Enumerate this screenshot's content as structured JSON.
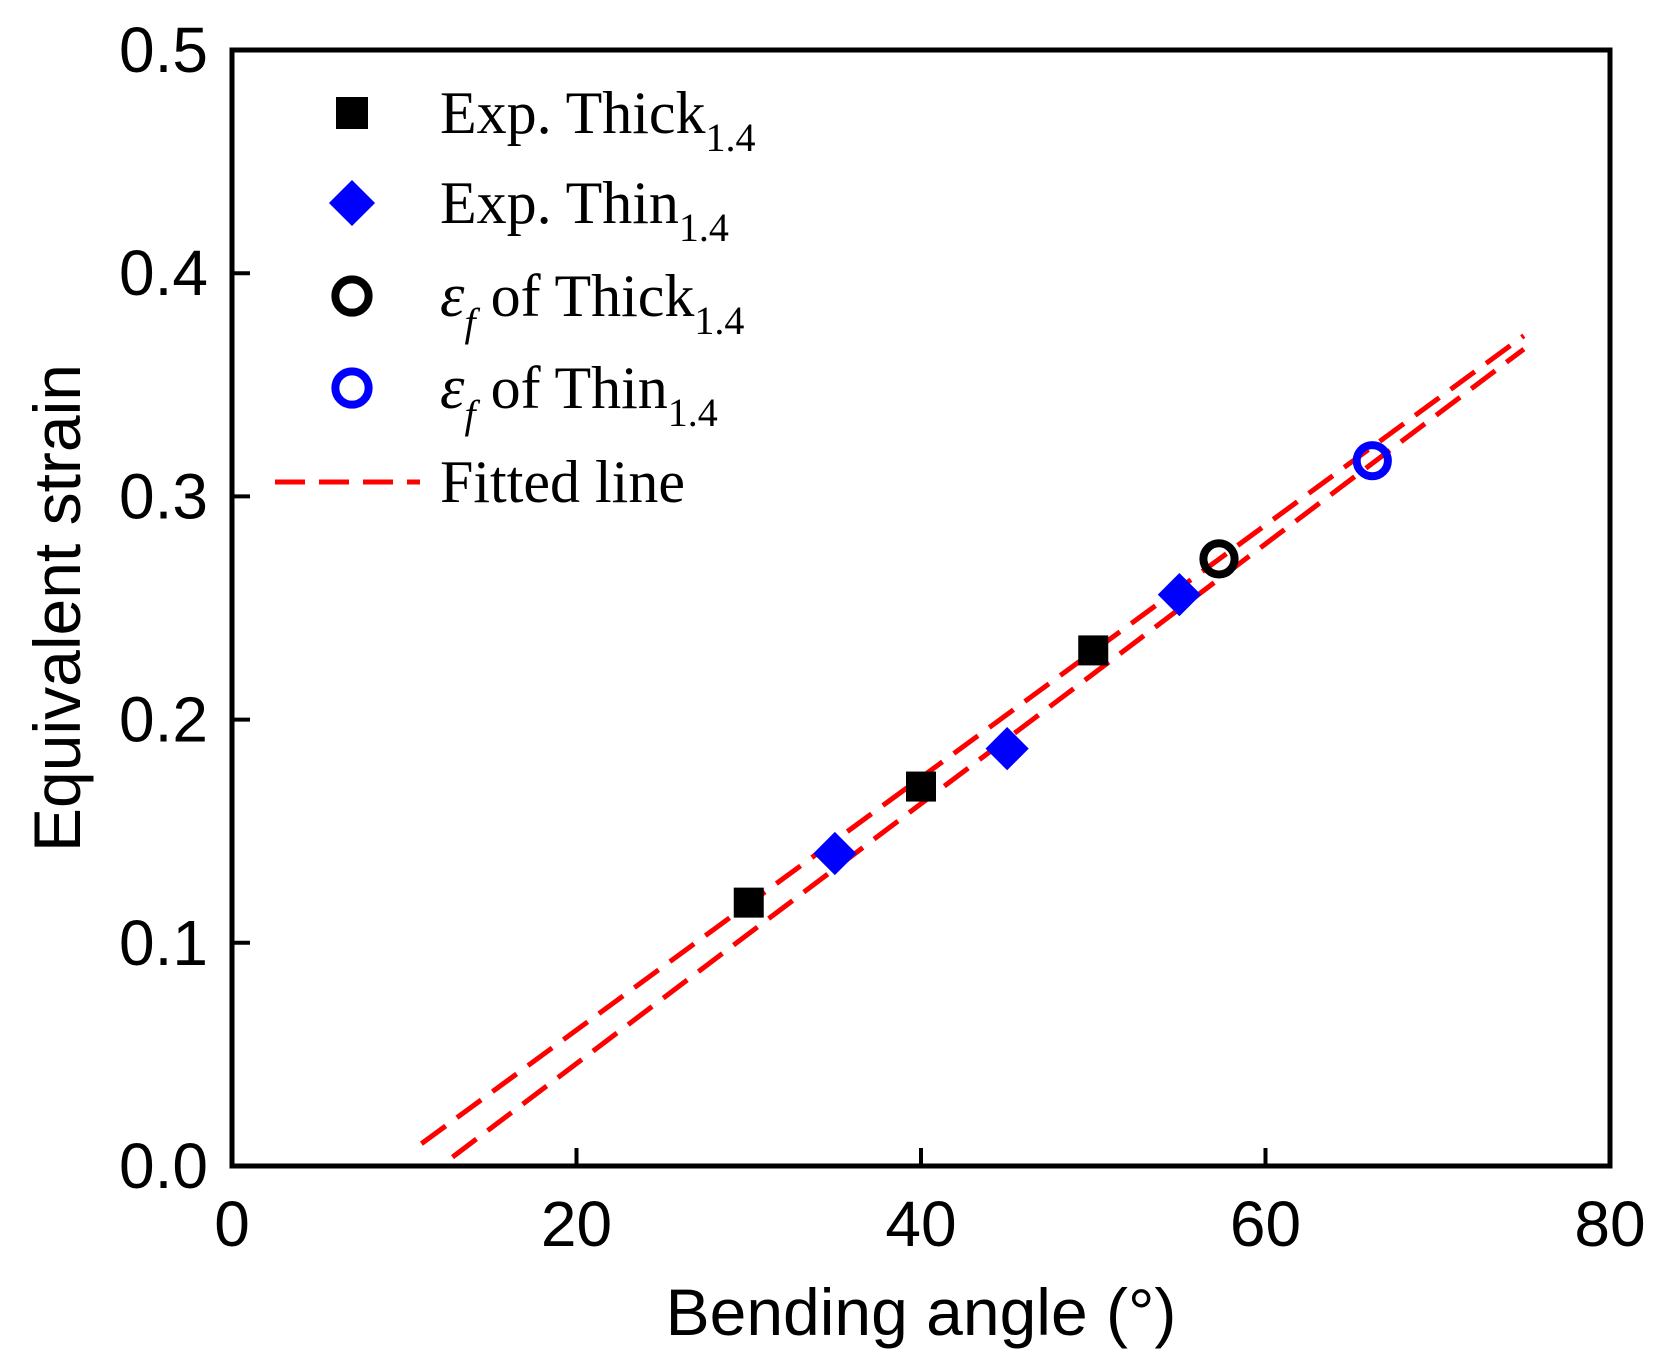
{
  "chart_data": {
    "type": "scatter",
    "title": "",
    "xlabel": "Bending angle (°)",
    "ylabel": "Equivalent strain",
    "xlim": [
      0,
      80
    ],
    "ylim": [
      0.0,
      0.5
    ],
    "xticks": [
      0,
      20,
      40,
      60,
      80
    ],
    "xtick_labels": [
      "0",
      "20",
      "40",
      "60",
      "80"
    ],
    "yticks": [
      0.0,
      0.1,
      0.2,
      0.3,
      0.4,
      0.5
    ],
    "ytick_labels": [
      "0.0",
      "0.1",
      "0.2",
      "0.3",
      "0.4",
      "0.5"
    ],
    "grid": false,
    "legend_position": "top-left",
    "series": [
      {
        "name": "Exp. Thick1.4",
        "label_main": "Exp. Thick",
        "label_sub": "1.4",
        "marker": "square",
        "color": "#000000",
        "x": [
          30,
          40,
          50
        ],
        "y": [
          0.118,
          0.17,
          0.231
        ]
      },
      {
        "name": "Exp. Thin1.4",
        "label_main": "Exp. Thin",
        "label_sub": "1.4",
        "marker": "diamond",
        "color": "#0000ff",
        "x": [
          35,
          45,
          55
        ],
        "y": [
          0.14,
          0.187,
          0.256
        ]
      },
      {
        "name": "εf of Thick1.4",
        "label_eps": "ε",
        "label_eps_sub": "f",
        "label_main": " of Thick",
        "label_sub": "1.4",
        "marker": "open-circle",
        "color": "#000000",
        "x": [
          57.3
        ],
        "y": [
          0.272
        ]
      },
      {
        "name": "εf of Thin1.4",
        "label_eps": "ε",
        "label_eps_sub": "f",
        "label_main": " of Thin",
        "label_sub": "1.4",
        "marker": "open-circle",
        "color": "#0000ff",
        "x": [
          66.2
        ],
        "y": [
          0.316
        ]
      },
      {
        "name": "Fitted line",
        "label_main": "Fitted line",
        "marker": "dashed-line",
        "color": "#ff0000",
        "lines": [
          {
            "x": [
              11.0,
              75.0
            ],
            "y": [
              0.01,
              0.372
            ]
          },
          {
            "x": [
              12.8,
              75.0
            ],
            "y": [
              0.004,
              0.366
            ]
          }
        ]
      }
    ]
  }
}
